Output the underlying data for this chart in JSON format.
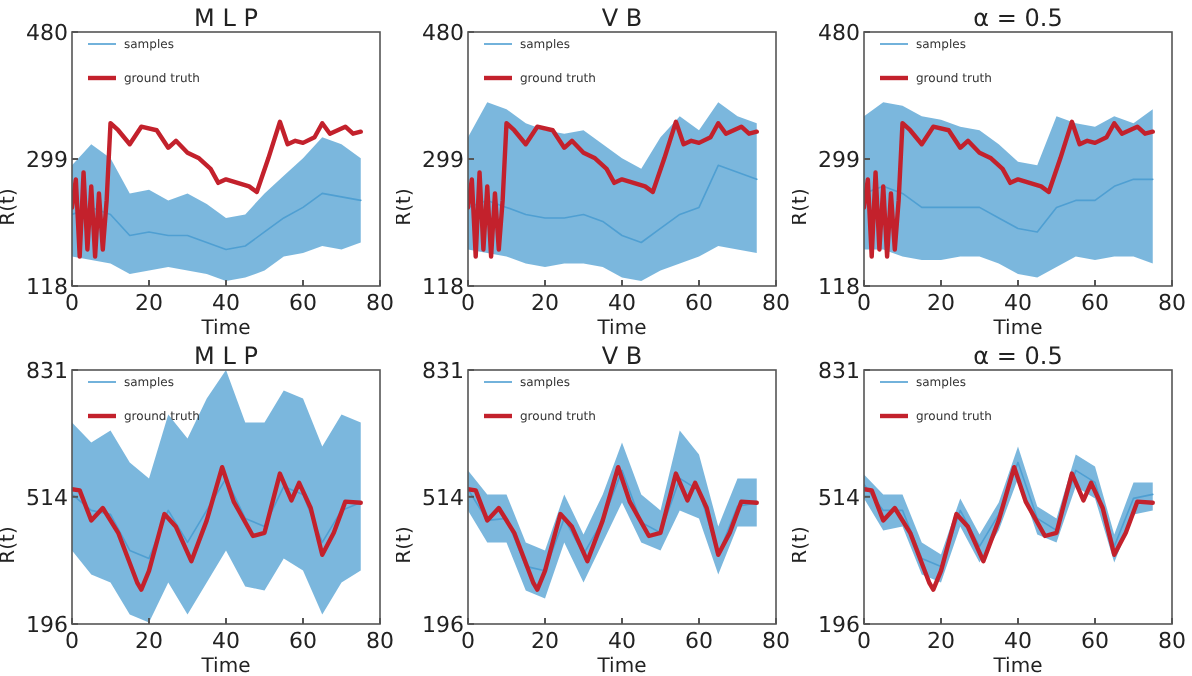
{
  "chart_data": [
    {
      "type": "line",
      "title": "M L P",
      "xlabel": "Time",
      "ylabel": "R(t)",
      "xlim": [
        0,
        80
      ],
      "xticks": [
        0,
        20,
        40,
        60,
        80
      ],
      "ylim": [
        118,
        480
      ],
      "yticks": [
        118,
        299,
        480
      ],
      "legend": "top left",
      "series": [
        {
          "name": "samples",
          "color": "#4f9fd2",
          "x": [
            0,
            5,
            10,
            15,
            20,
            25,
            30,
            35,
            40,
            45,
            50,
            55,
            60,
            65,
            70,
            75
          ],
          "values": [
            220,
            230,
            220,
            190,
            195,
            190,
            190,
            180,
            170,
            175,
            195,
            215,
            230,
            250,
            245,
            240
          ],
          "lower": [
            160,
            155,
            150,
            135,
            140,
            145,
            140,
            135,
            125,
            130,
            140,
            160,
            165,
            175,
            170,
            180
          ],
          "upper": [
            290,
            320,
            300,
            250,
            255,
            240,
            250,
            235,
            215,
            220,
            250,
            275,
            300,
            330,
            320,
            300
          ]
        },
        {
          "name": "ground truth",
          "color": "#c3212c",
          "x": [
            0,
            1,
            2,
            3,
            4,
            5,
            6,
            7,
            8,
            9,
            10,
            12,
            15,
            18,
            22,
            25,
            27,
            30,
            33,
            36,
            38,
            40,
            43,
            46,
            48,
            51,
            54,
            56,
            58,
            60,
            63,
            65,
            67,
            69,
            71,
            73,
            75
          ],
          "values": [
            230,
            270,
            160,
            280,
            170,
            260,
            160,
            250,
            170,
            240,
            350,
            340,
            320,
            345,
            340,
            315,
            325,
            308,
            300,
            285,
            265,
            270,
            265,
            260,
            252,
            300,
            352,
            320,
            325,
            322,
            330,
            350,
            335,
            340,
            345,
            335,
            338
          ]
        }
      ]
    },
    {
      "type": "line",
      "title": "V B",
      "xlabel": "Time",
      "ylabel": "R(t)",
      "xlim": [
        0,
        80
      ],
      "xticks": [
        0,
        20,
        40,
        60,
        80
      ],
      "ylim": [
        118,
        480
      ],
      "yticks": [
        118,
        299,
        480
      ],
      "legend": "top left",
      "series": [
        {
          "name": "samples",
          "color": "#4f9fd2",
          "x": [
            0,
            5,
            10,
            15,
            20,
            25,
            30,
            35,
            40,
            45,
            50,
            55,
            60,
            65,
            70,
            75
          ],
          "values": [
            230,
            240,
            230,
            220,
            215,
            215,
            220,
            210,
            190,
            180,
            200,
            220,
            230,
            290,
            280,
            270
          ],
          "lower": [
            170,
            165,
            160,
            150,
            145,
            150,
            150,
            145,
            130,
            125,
            140,
            150,
            160,
            175,
            170,
            165
          ],
          "upper": [
            330,
            380,
            370,
            350,
            340,
            335,
            340,
            320,
            300,
            285,
            330,
            360,
            340,
            380,
            360,
            350
          ]
        },
        {
          "name": "ground truth",
          "color": "#c3212c",
          "x": [
            0,
            1,
            2,
            3,
            4,
            5,
            6,
            7,
            8,
            9,
            10,
            12,
            15,
            18,
            22,
            25,
            27,
            30,
            33,
            36,
            38,
            40,
            43,
            46,
            48,
            51,
            54,
            56,
            58,
            60,
            63,
            65,
            67,
            69,
            71,
            73,
            75
          ],
          "values": [
            230,
            270,
            160,
            280,
            170,
            260,
            160,
            250,
            170,
            240,
            350,
            340,
            320,
            345,
            340,
            315,
            325,
            308,
            300,
            285,
            265,
            270,
            265,
            260,
            252,
            300,
            352,
            320,
            325,
            322,
            330,
            350,
            335,
            340,
            345,
            335,
            338
          ]
        }
      ]
    },
    {
      "type": "line",
      "title": "α = 0.5",
      "xlabel": "Time",
      "ylabel": "R(t)",
      "xlim": [
        0,
        80
      ],
      "xticks": [
        0,
        20,
        40,
        60,
        80
      ],
      "ylim": [
        118,
        480
      ],
      "yticks": [
        118,
        299,
        480
      ],
      "legend": "top left",
      "series": [
        {
          "name": "samples",
          "color": "#4f9fd2",
          "x": [
            0,
            5,
            10,
            15,
            20,
            25,
            30,
            35,
            40,
            45,
            50,
            55,
            60,
            65,
            70,
            75
          ],
          "values": [
            250,
            260,
            250,
            230,
            230,
            230,
            230,
            215,
            200,
            195,
            230,
            240,
            240,
            260,
            270,
            270
          ],
          "lower": [
            170,
            170,
            160,
            155,
            155,
            160,
            160,
            150,
            135,
            130,
            145,
            160,
            155,
            160,
            160,
            150
          ],
          "upper": [
            360,
            380,
            375,
            360,
            355,
            345,
            340,
            320,
            295,
            290,
            360,
            350,
            345,
            360,
            350,
            370
          ]
        },
        {
          "name": "ground truth",
          "color": "#c3212c",
          "x": [
            0,
            1,
            2,
            3,
            4,
            5,
            6,
            7,
            8,
            9,
            10,
            12,
            15,
            18,
            22,
            25,
            27,
            30,
            33,
            36,
            38,
            40,
            43,
            46,
            48,
            51,
            54,
            56,
            58,
            60,
            63,
            65,
            67,
            69,
            71,
            73,
            75
          ],
          "values": [
            230,
            270,
            160,
            280,
            170,
            260,
            160,
            250,
            170,
            240,
            350,
            340,
            320,
            345,
            340,
            315,
            325,
            308,
            300,
            285,
            265,
            270,
            265,
            260,
            252,
            300,
            352,
            320,
            325,
            322,
            330,
            350,
            335,
            340,
            345,
            335,
            338
          ]
        }
      ]
    },
    {
      "type": "line",
      "title": "M L P",
      "xlabel": "Time",
      "ylabel": "R(t)",
      "xlim": [
        0,
        80
      ],
      "xticks": [
        0,
        20,
        40,
        60,
        80
      ],
      "ylim": [
        196,
        831
      ],
      "yticks": [
        196,
        514,
        831
      ],
      "legend": "top left",
      "series": [
        {
          "name": "samples",
          "color": "#4f9fd2",
          "x": [
            0,
            5,
            10,
            15,
            20,
            25,
            30,
            35,
            40,
            45,
            50,
            55,
            60,
            65,
            70,
            75
          ],
          "values": [
            520,
            480,
            470,
            380,
            360,
            480,
            400,
            480,
            560,
            460,
            440,
            540,
            520,
            400,
            480,
            500
          ],
          "lower": [
            380,
            320,
            300,
            220,
            200,
            300,
            220,
            300,
            380,
            290,
            280,
            360,
            330,
            220,
            300,
            330
          ],
          "upper": [
            700,
            650,
            680,
            600,
            560,
            720,
            660,
            760,
            831,
            700,
            700,
            780,
            760,
            640,
            720,
            700
          ]
        },
        {
          "name": "ground truth",
          "color": "#c3212c",
          "x": [
            0,
            2,
            5,
            8,
            12,
            17,
            18,
            20,
            24,
            27,
            31,
            35,
            39,
            42,
            47,
            50,
            54,
            57,
            59,
            62,
            65,
            68,
            71,
            75
          ],
          "values": [
            533,
            530,
            455,
            486,
            424,
            298,
            282,
            329,
            471,
            439,
            353,
            455,
            588,
            502,
            416,
            424,
            572,
            505,
            549,
            486,
            369,
            424,
            502,
            499
          ]
        }
      ]
    },
    {
      "type": "line",
      "title": "V B",
      "xlabel": "Time",
      "ylabel": "R(t)",
      "xlim": [
        0,
        80
      ],
      "xticks": [
        0,
        20,
        40,
        60,
        80
      ],
      "ylim": [
        196,
        831
      ],
      "yticks": [
        196,
        514,
        831
      ],
      "legend": "top left",
      "series": [
        {
          "name": "samples",
          "color": "#4f9fd2",
          "x": [
            0,
            5,
            10,
            15,
            20,
            25,
            30,
            35,
            40,
            45,
            50,
            55,
            60,
            65,
            70,
            75
          ],
          "values": [
            533,
            455,
            460,
            340,
            329,
            460,
            370,
            455,
            580,
            450,
            424,
            560,
            530,
            369,
            490,
            499
          ],
          "lower": [
            480,
            400,
            400,
            280,
            260,
            400,
            300,
            400,
            500,
            400,
            380,
            480,
            460,
            320,
            440,
            440
          ],
          "upper": [
            580,
            520,
            520,
            400,
            380,
            520,
            420,
            520,
            650,
            520,
            480,
            680,
            620,
            440,
            560,
            560
          ]
        },
        {
          "name": "ground truth",
          "color": "#c3212c",
          "x": [
            0,
            2,
            5,
            8,
            12,
            17,
            18,
            20,
            24,
            27,
            31,
            35,
            39,
            42,
            47,
            50,
            54,
            57,
            59,
            62,
            65,
            68,
            71,
            75
          ],
          "values": [
            533,
            530,
            455,
            486,
            424,
            298,
            282,
            329,
            471,
            439,
            353,
            455,
            588,
            502,
            416,
            424,
            572,
            505,
            549,
            486,
            369,
            424,
            502,
            499
          ]
        }
      ]
    },
    {
      "type": "line",
      "title": "α = 0.5",
      "xlabel": "Time",
      "ylabel": "R(t)",
      "xlim": [
        0,
        80
      ],
      "xticks": [
        0,
        20,
        40,
        60,
        80
      ],
      "ylim": [
        196,
        831
      ],
      "yticks": [
        196,
        514,
        831
      ],
      "legend": "top left",
      "series": [
        {
          "name": "samples",
          "color": "#4f9fd2",
          "x": [
            0,
            5,
            10,
            15,
            20,
            25,
            30,
            35,
            40,
            45,
            50,
            55,
            60,
            65,
            70,
            75
          ],
          "values": [
            545,
            480,
            480,
            360,
            340,
            480,
            390,
            470,
            600,
            460,
            430,
            580,
            550,
            390,
            510,
            520
          ],
          "lower": [
            510,
            430,
            440,
            320,
            300,
            440,
            350,
            430,
            560,
            420,
            400,
            540,
            510,
            350,
            470,
            480
          ],
          "upper": [
            570,
            520,
            520,
            400,
            370,
            510,
            420,
            500,
            640,
            490,
            460,
            620,
            590,
            420,
            550,
            550
          ]
        },
        {
          "name": "ground truth",
          "color": "#c3212c",
          "x": [
            0,
            2,
            5,
            8,
            12,
            17,
            18,
            20,
            24,
            27,
            31,
            35,
            39,
            42,
            47,
            50,
            54,
            57,
            59,
            62,
            65,
            68,
            71,
            75
          ],
          "values": [
            533,
            530,
            455,
            486,
            424,
            298,
            282,
            329,
            471,
            439,
            353,
            455,
            588,
            502,
            416,
            424,
            572,
            505,
            549,
            486,
            369,
            424,
            502,
            499
          ]
        }
      ]
    }
  ]
}
